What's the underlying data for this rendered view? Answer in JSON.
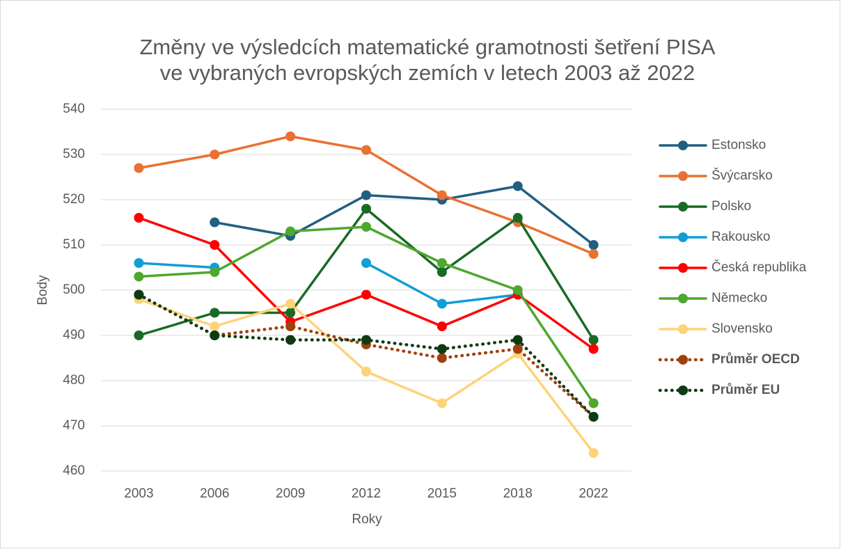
{
  "chart_data": {
    "type": "line",
    "title": [
      "Změny ve výsledcích matematické gramotnosti šetření PISA",
      "ve  vybraných evropských zemích v letech 2003 až 2022"
    ],
    "x_label": "Roky",
    "y_label": "Body",
    "categories": [
      "2003",
      "2006",
      "2009",
      "2012",
      "2015",
      "2018",
      "2022"
    ],
    "ylim": [
      460,
      540
    ],
    "yticks": [
      460,
      470,
      480,
      490,
      500,
      510,
      520,
      530,
      540
    ],
    "grid": true,
    "legend": "right",
    "series": [
      {
        "name": "Estonsko",
        "color": "#215f80",
        "values": [
          null,
          515,
          512,
          521,
          520,
          523,
          510
        ]
      },
      {
        "name": "Švýcarsko",
        "color": "#e97132",
        "values": [
          527,
          530,
          534,
          531,
          521,
          515,
          508
        ]
      },
      {
        "name": "Polsko",
        "color": "#196b24",
        "values": [
          490,
          495,
          495,
          518,
          504,
          516,
          489
        ]
      },
      {
        "name": "Rakousko",
        "color": "#0f9ed5",
        "values": [
          506,
          505,
          null,
          506,
          497,
          499,
          null
        ]
      },
      {
        "name": "Česká republika",
        "color": "#ff0000",
        "values": [
          516,
          510,
          493,
          499,
          492,
          499,
          487
        ]
      },
      {
        "name": "Německo",
        "color": "#4ea72e",
        "values": [
          503,
          504,
          513,
          514,
          506,
          500,
          475
        ]
      },
      {
        "name": "Slovensko",
        "color": "#fdd37a",
        "values": [
          498,
          492,
          497,
          482,
          475,
          486,
          464
        ]
      },
      {
        "name": "Průměr OECD",
        "color": "#a0410d",
        "line_style": "dotted",
        "bold": true,
        "values": [
          499,
          490,
          492,
          488,
          485,
          487,
          472
        ]
      },
      {
        "name": "Průměr EU",
        "color": "#0e3b12",
        "line_style": "dotted",
        "bold": true,
        "values": [
          499,
          490,
          489,
          489,
          487,
          489,
          472
        ]
      }
    ]
  }
}
